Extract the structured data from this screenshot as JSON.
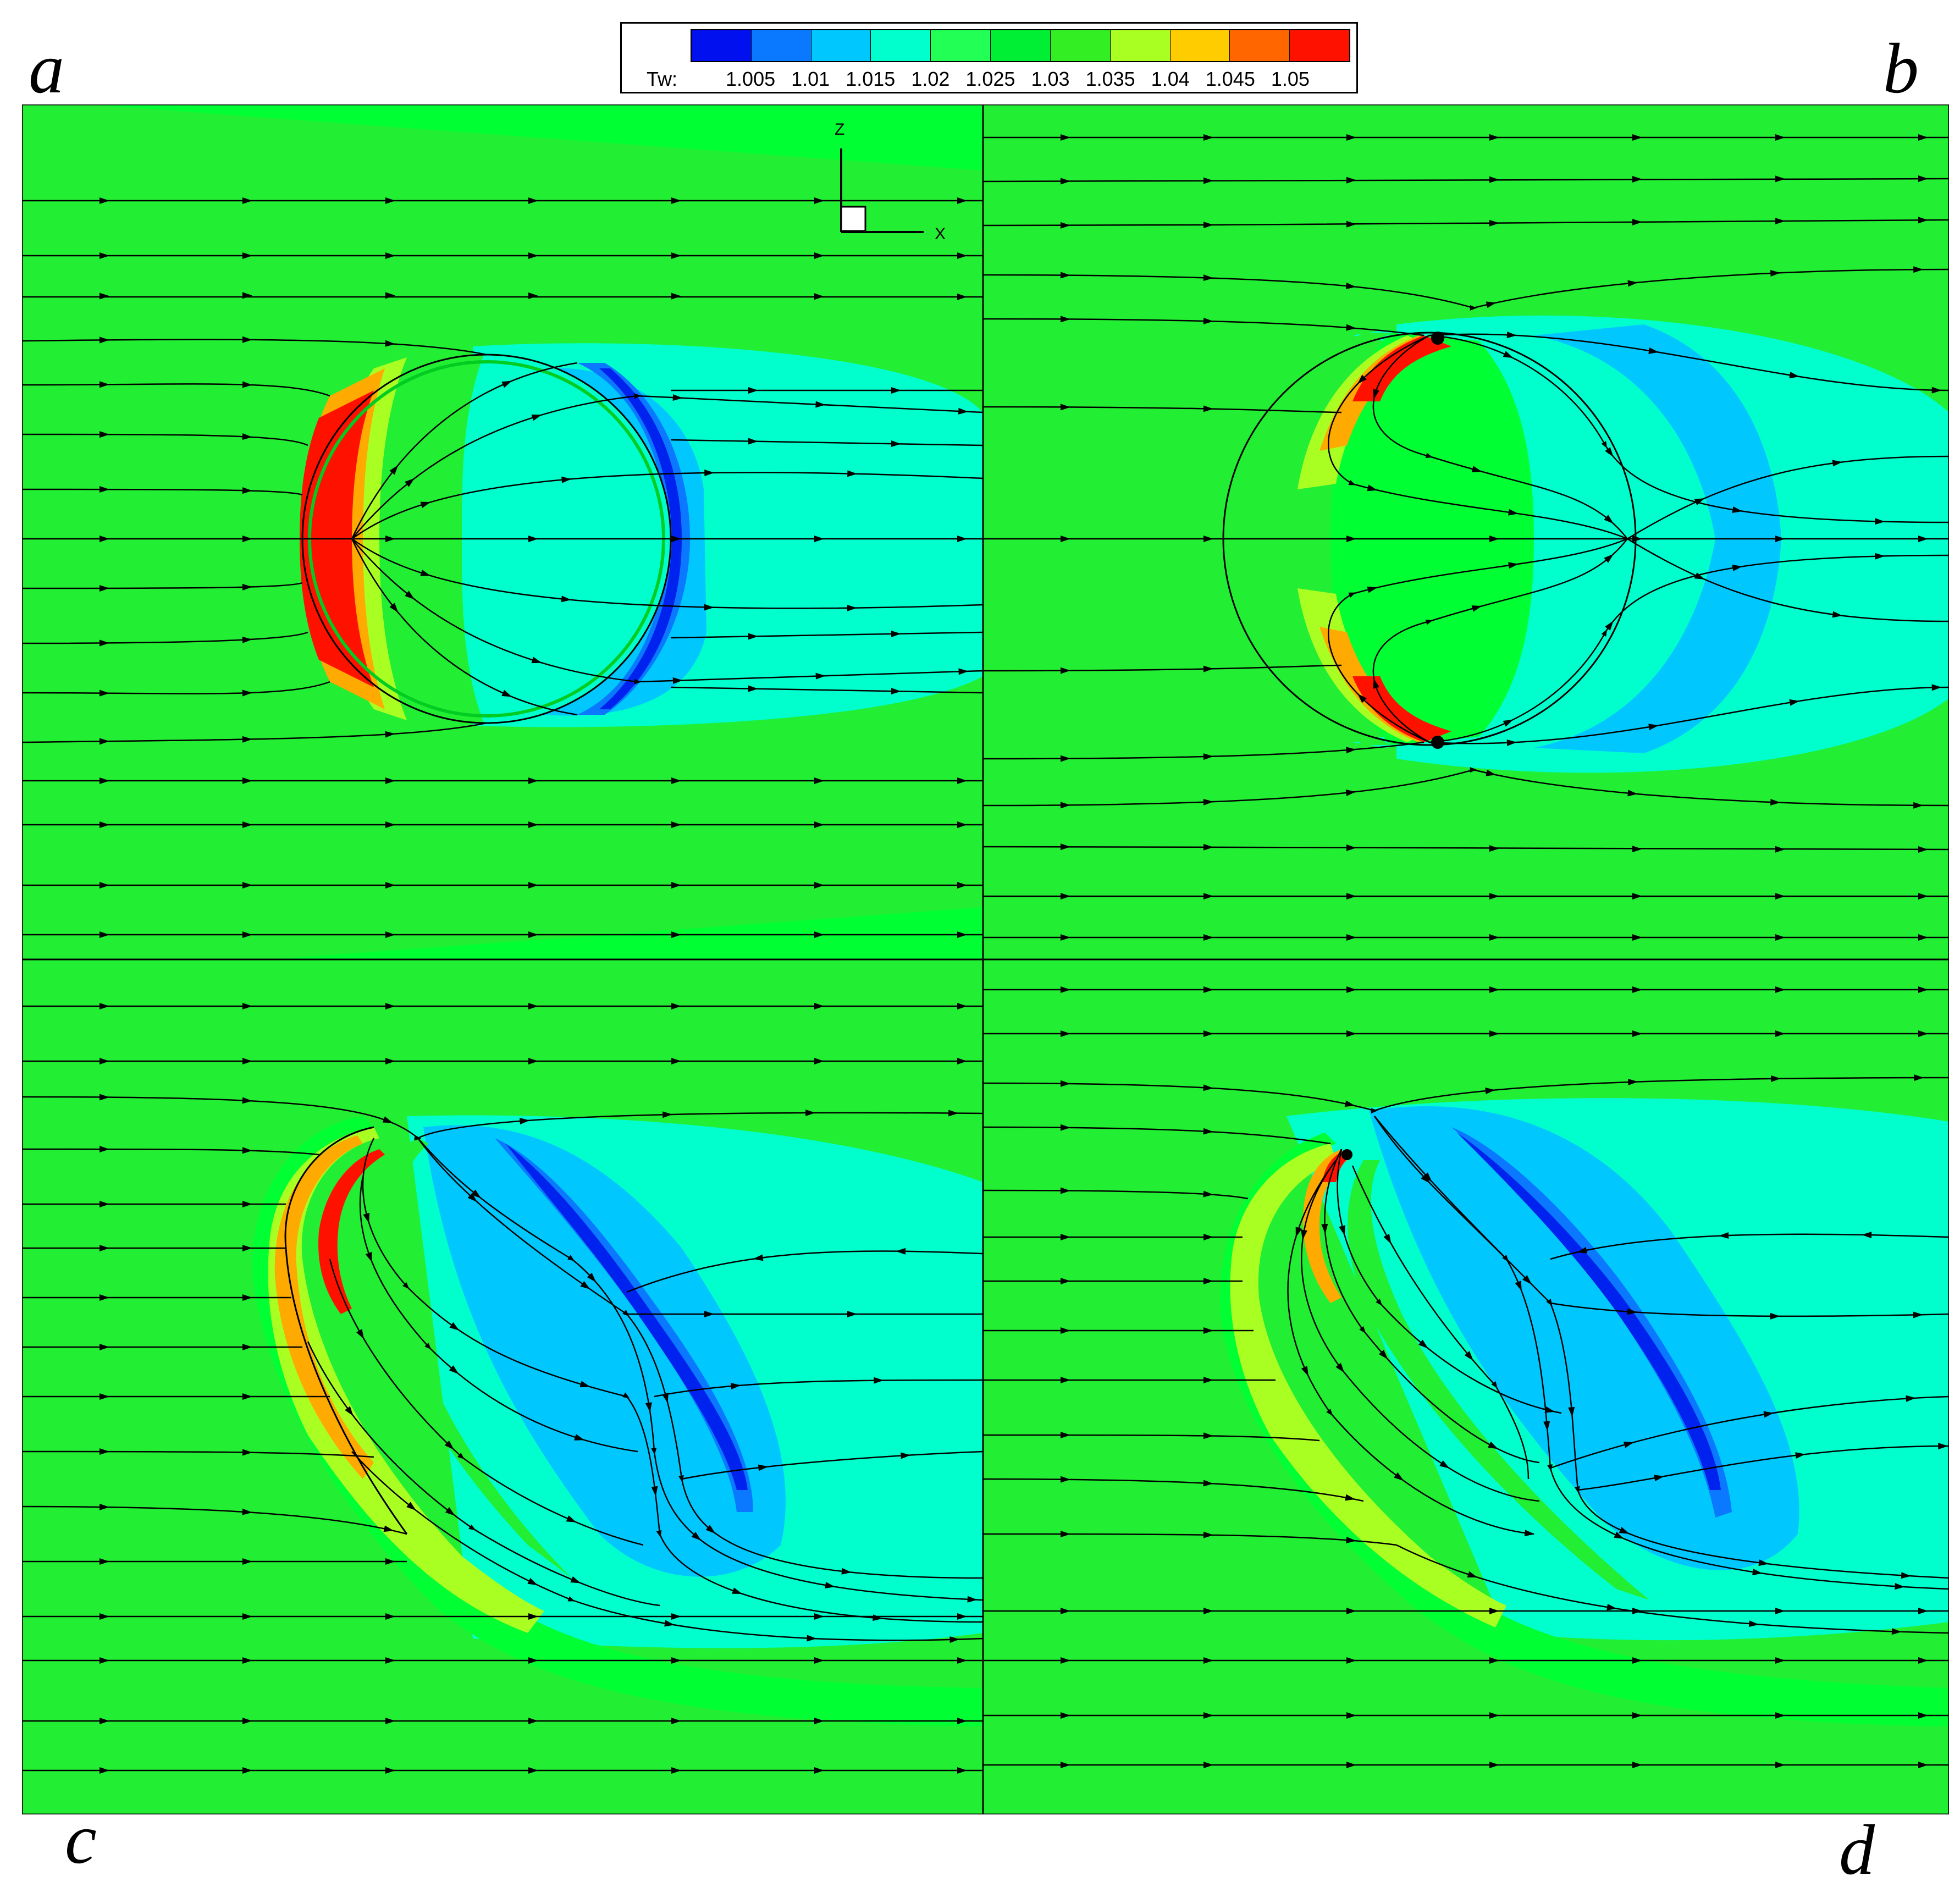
{
  "panels": {
    "a": "a",
    "b": "b",
    "c": "c",
    "d": "d"
  },
  "colorbar": {
    "label": "Tw:",
    "ticks": [
      "1.005",
      "1.01",
      "1.015",
      "1.02",
      "1.025",
      "1.03",
      "1.035",
      "1.04",
      "1.045",
      "1.05"
    ],
    "colors": [
      "#0010ee",
      "#0a78ff",
      "#00c8ff",
      "#00ffcc",
      "#22ff55",
      "#00ee33",
      "#33ee22",
      "#aaff22",
      "#ffcc00",
      "#ff6600",
      "#ff1100"
    ]
  },
  "axes_triad": {
    "z": "Z",
    "x": "X"
  },
  "colors": {
    "background": "#22ee33",
    "light_green": "#00ff33",
    "cyan": "#00ffcc",
    "light_blue": "#00c8ff",
    "blue": "#0a78ff",
    "dark_blue": "#0022ee",
    "yellow_green": "#aaff22",
    "orange": "#ffaa00",
    "red": "#ff1100",
    "streamline": "#000000"
  }
}
